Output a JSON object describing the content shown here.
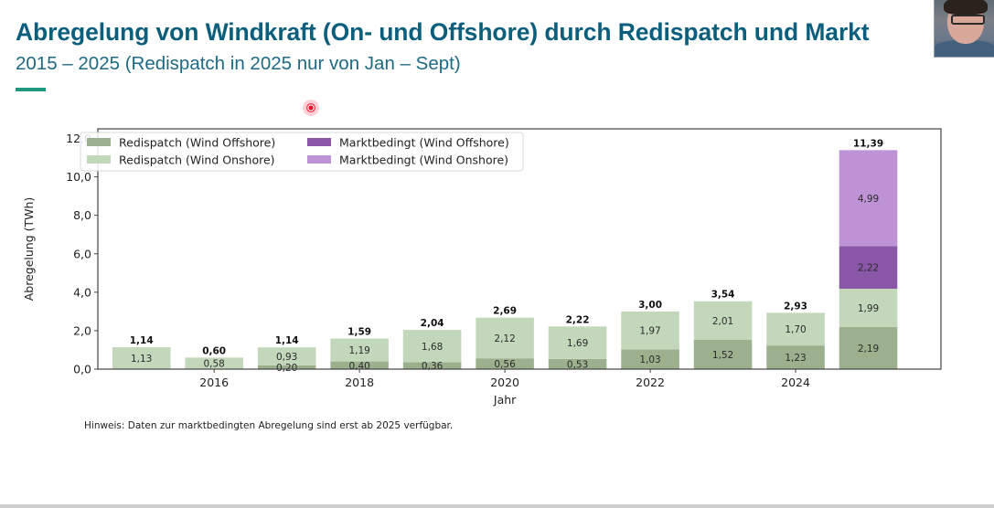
{
  "slide": {
    "title": "Abregelung von Windkraft (On- und Offshore) durch Redispatch und Markt",
    "subtitle": "2015 – 2025 (Redispatch in 2025 nur von Jan – Sept)",
    "accent_color": "#1f9a7e",
    "title_color": "#0b5f7c",
    "note": "Hinweis: Daten zur marktbedingten Abregelung sind erst ab 2025 verfügbar."
  },
  "chart_data": {
    "type": "bar",
    "stacked": true,
    "title": "",
    "xlabel": "Jahr",
    "ylabel": "Abregelung (TWh)",
    "ylim": [
      0,
      12.5
    ],
    "xlim": [
      2014.4,
      2026.0
    ],
    "grid": false,
    "legend_position": "top-left",
    "legend_columns": 2,
    "yticks": [
      0,
      2,
      4,
      6,
      8,
      10,
      12
    ],
    "ytick_labels": [
      "0,0",
      "2,0",
      "4,0",
      "6,0",
      "8,0",
      "10,0",
      "12,0"
    ],
    "xticks": [
      2016,
      2018,
      2020,
      2022,
      2024
    ],
    "xtick_labels": [
      "2016",
      "2018",
      "2020",
      "2022",
      "2024"
    ],
    "categories": [
      2015,
      2016,
      2017,
      2018,
      2019,
      2020,
      2021,
      2022,
      2023,
      2024,
      2025
    ],
    "series": [
      {
        "name": "Redispatch (Wind Offshore)",
        "color": "#9cb08e",
        "values": [
          0.01,
          0.02,
          0.2,
          0.4,
          0.36,
          0.56,
          0.53,
          1.03,
          1.52,
          1.23,
          2.19
        ],
        "labels": [
          "",
          "",
          "0,20",
          "0,40",
          "0,36",
          "0,56",
          "0,53",
          "1,03",
          "1,52",
          "1,23",
          "2,19"
        ]
      },
      {
        "name": "Redispatch (Wind Onshore)",
        "color": "#c3d8bb",
        "values": [
          1.13,
          0.58,
          0.93,
          1.19,
          1.68,
          2.12,
          1.69,
          1.97,
          2.01,
          1.7,
          1.99
        ],
        "labels": [
          "1,13",
          "0,58",
          "0,93",
          "1,19",
          "1,68",
          "2,12",
          "1,69",
          "1,97",
          "2,01",
          "1,70",
          "1,99"
        ]
      },
      {
        "name": "Marktbedingt (Wind Offshore)",
        "color": "#8a56a6",
        "values": [
          0,
          0,
          0,
          0,
          0,
          0,
          0,
          0,
          0,
          0,
          2.22
        ],
        "labels": [
          "",
          "",
          "",
          "",
          "",
          "",
          "",
          "",
          "",
          "",
          "2,22"
        ]
      },
      {
        "name": "Marktbedingt (Wind Onshore)",
        "color": "#bd93d6",
        "values": [
          0,
          0,
          0,
          0,
          0,
          0,
          0,
          0,
          0,
          0,
          4.99
        ],
        "labels": [
          "",
          "",
          "",
          "",
          "",
          "",
          "",
          "",
          "",
          "",
          "4,99"
        ]
      }
    ],
    "totals": [
      1.14,
      0.6,
      1.14,
      1.59,
      2.04,
      2.69,
      2.22,
      3.0,
      3.54,
      2.93,
      11.39
    ],
    "total_labels": [
      "1,14",
      "0,60",
      "1,14",
      "1,59",
      "2,04",
      "2,69",
      "2,22",
      "3,00",
      "3,54",
      "2,93",
      "11,39"
    ]
  }
}
